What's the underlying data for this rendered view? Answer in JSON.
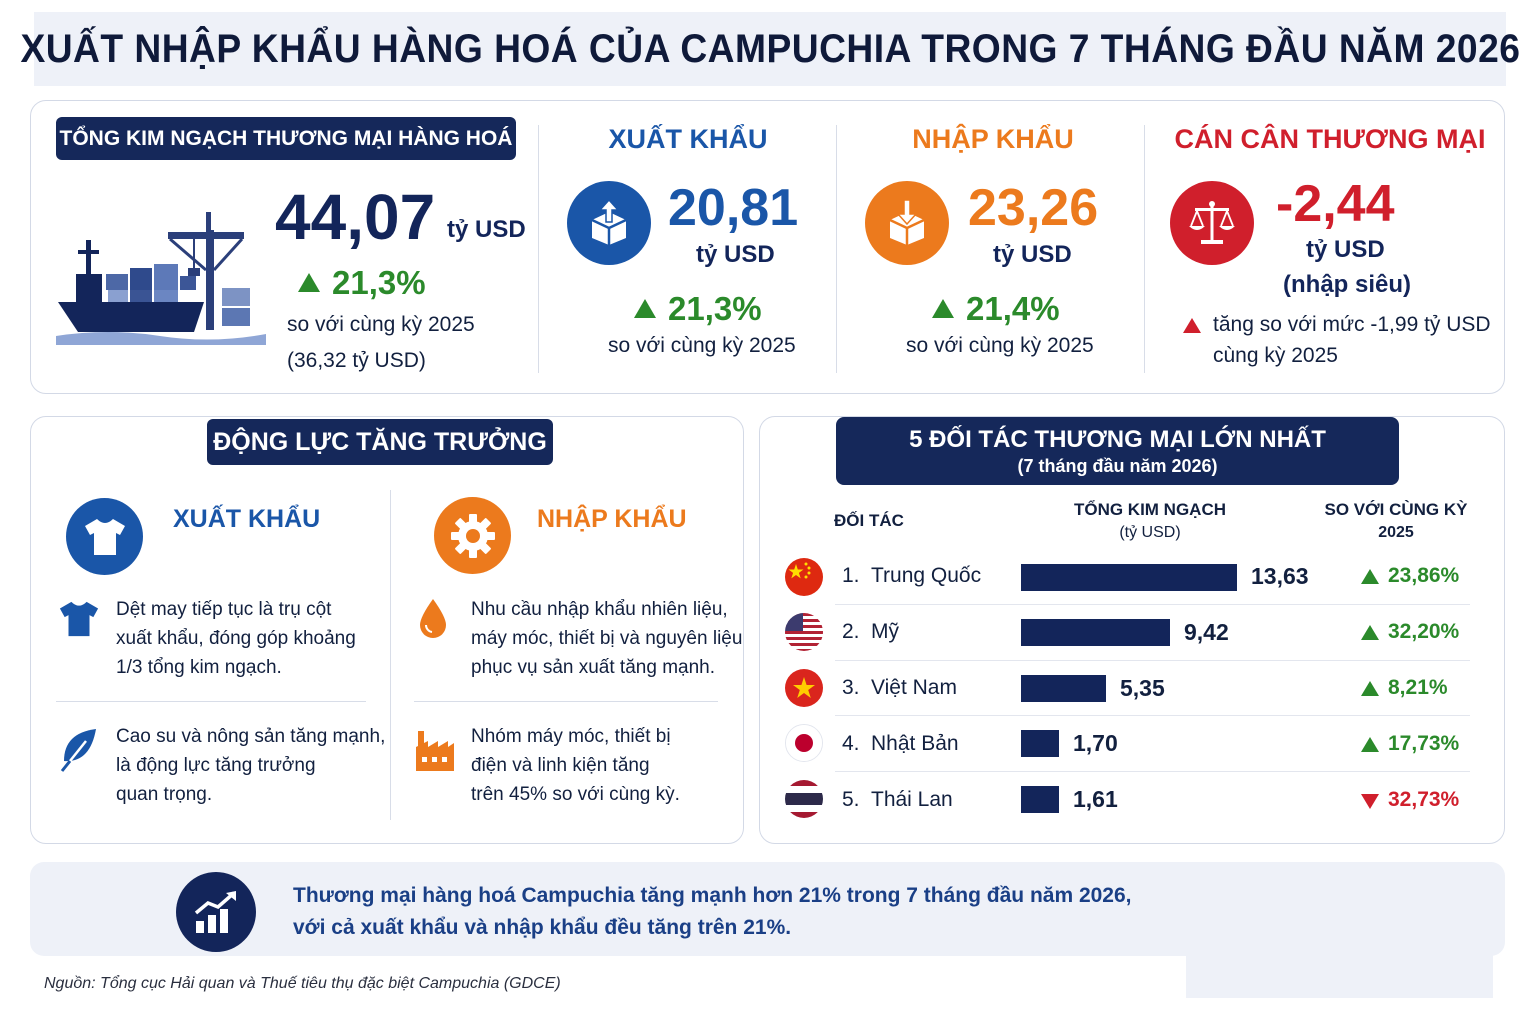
{
  "title": "XUẤT NHẬP KHẨU HÀNG HOÁ CỦA CAMPUCHIA TRONG 7 THÁNG ĐẦU NĂM 2026",
  "summary": {
    "total": {
      "label": "TỔNG KIM NGẠCH THƯƠNG MẠI HÀNG HOÁ",
      "value": "44,07",
      "unit": "tỷ USD",
      "growth": "21,3%",
      "compare": "so với cùng kỳ 2025",
      "prior": "(36,32 tỷ USD)",
      "icon": "cargo-ship-icon"
    },
    "export": {
      "label": "XUẤT KHẨU",
      "value": "20,81",
      "unit": "tỷ USD",
      "growth": "21,3%",
      "compare": "so với cùng kỳ 2025",
      "icon": "box-export-icon"
    },
    "import": {
      "label": "NHẬP KHẨU",
      "value": "23,26",
      "unit": "tỷ USD",
      "growth": "21,4%",
      "compare": "so với cùng kỳ 2025",
      "icon": "box-import-icon"
    },
    "balance": {
      "label": "CÁN CÂN THƯƠNG MẠI",
      "value": "-2,44",
      "unit": "tỷ USD",
      "note": "(nhập siêu)",
      "change_line1": "tăng so với mức -1,99 tỷ USD",
      "change_line2": "cùng kỳ 2025",
      "icon": "scale-icon"
    }
  },
  "drivers": {
    "title": "ĐỘNG LỰC TĂNG TRƯỞNG",
    "export": {
      "label": "XUẤT KHẨU",
      "icon": "tshirt-icon",
      "items": [
        {
          "icon": "tshirt-icon",
          "lines": [
            "Dệt may tiếp tục là trụ cột",
            "xuất khẩu, đóng góp khoảng",
            "1/3 tổng kim ngạch."
          ]
        },
        {
          "icon": "leaf-icon",
          "lines": [
            "Cao su và nông sản tăng mạnh,",
            "là động lực tăng trưởng",
            "quan trọng."
          ]
        }
      ]
    },
    "import": {
      "label": "NHẬP KHẨU",
      "icon": "gear-icon",
      "items": [
        {
          "icon": "fuel-drop-icon",
          "lines": [
            "Nhu cầu nhập khẩu nhiên liệu,",
            "máy móc, thiết bị và nguyên liệu",
            "phục vụ sản xuất tăng mạnh."
          ]
        },
        {
          "icon": "factory-icon",
          "lines": [
            "Nhóm máy móc, thiết bị",
            "điện và linh kiện tăng",
            "trên 45% so với cùng kỳ."
          ]
        }
      ]
    }
  },
  "partners": {
    "title": "5 ĐỐI TÁC THƯƠNG MẠI LỚN NHẤT",
    "subtitle": "(7 tháng đầu năm 2026)",
    "col_partner": "ĐỐI TÁC",
    "col_total": "TỔNG KIM NGẠCH",
    "col_total_unit": "(tỷ USD)",
    "col_change": "SO VỚI CÙNG KỲ",
    "col_change_year": "2025",
    "rows": [
      {
        "rank": "1.",
        "name": "Trung Quốc",
        "value": 13.63,
        "value_text": "13,63",
        "change": "23,86%",
        "direction": "up",
        "flag": "china-flag-icon"
      },
      {
        "rank": "2.",
        "name": "Mỹ",
        "value": 9.42,
        "value_text": "9,42",
        "change": "32,20%",
        "direction": "up",
        "flag": "usa-flag-icon"
      },
      {
        "rank": "3.",
        "name": "Việt Nam",
        "value": 5.35,
        "value_text": "5,35",
        "change": "8,21%",
        "direction": "up",
        "flag": "vietnam-flag-icon"
      },
      {
        "rank": "4.",
        "name": "Nhật Bản",
        "value": 1.7,
        "value_text": "1,70",
        "change": "17,73%",
        "direction": "up",
        "flag": "japan-flag-icon"
      },
      {
        "rank": "5.",
        "name": "Thái Lan",
        "value": 1.61,
        "value_text": "1,61",
        "change": "32,73%",
        "direction": "down",
        "flag": "thailand-flag-icon"
      }
    ]
  },
  "conclusion": {
    "line1": "Thương mại hàng hoá Campuchia tăng mạnh hơn 21% trong 7 tháng đầu năm 2026,",
    "line2": "với cả xuất khẩu và nhập khẩu đều tăng trên 21%.",
    "icon": "growth-chart-icon"
  },
  "source": "Nguồn: Tổng cục Hải quan và Thuế tiêu thụ đặc biệt Campuchia (GDCE)",
  "colors": {
    "navy": "#13255a",
    "export_blue": "#1a56a8",
    "import_orange": "#ec7a1d",
    "balance_red": "#d01f2c",
    "growth_green": "#2b8a2b"
  }
}
